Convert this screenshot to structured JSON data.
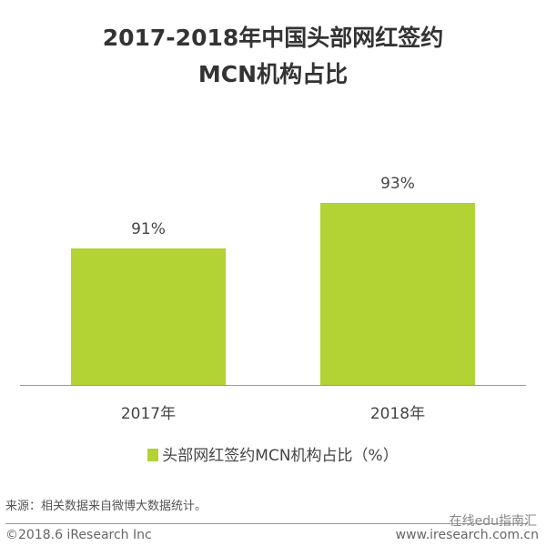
{
  "chart_data": {
    "type": "bar",
    "title": "2017-2018年中国头部网红签约MCN机构占比",
    "title_lines": [
      "2017-2018年中国头部网红签约",
      "MCN机构占比"
    ],
    "categories": [
      "2017年",
      "2018年"
    ],
    "series": [
      {
        "name": "头部网红签约MCN机构占比（%）",
        "values": [
          91,
          93
        ]
      }
    ],
    "data_labels": [
      "91%",
      "93%"
    ],
    "ylim": [
      85,
      97
    ],
    "grid": false,
    "legend": "bottom",
    "color": "#b3d234"
  },
  "footer": {
    "source": "来源：相关数据来自微博大数据统计。",
    "copyright": "©2018.6 iResearch Inc",
    "website": "www.iresearch.com.cn",
    "watermark": "在线edu指南汇"
  }
}
